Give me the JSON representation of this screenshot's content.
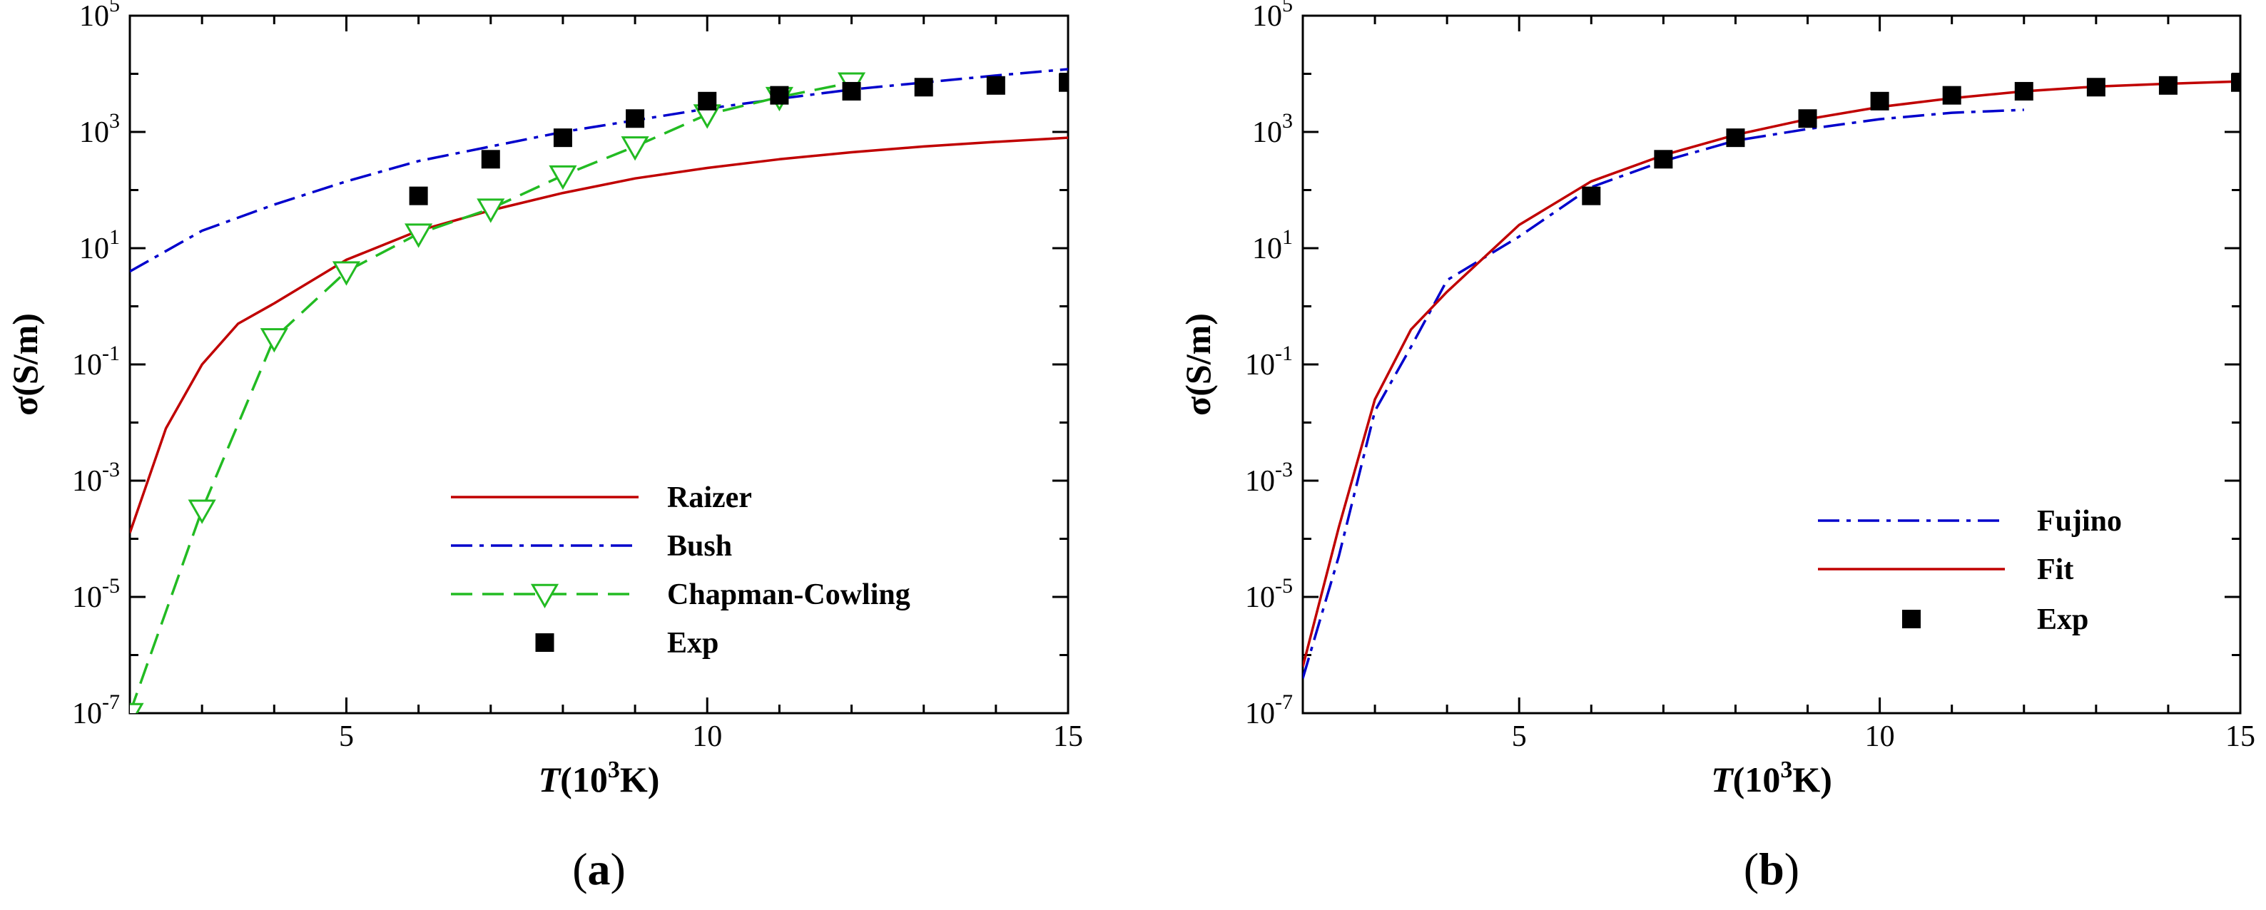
{
  "chart_data": [
    {
      "type": "line",
      "panel": "a",
      "caption": {
        "open": "(",
        "letter": "a",
        "close": ")"
      },
      "xlabel": {
        "var": "T",
        "open": "(10",
        "sup": "3",
        "rest": "K)"
      },
      "ylabel": "σ(S/m)",
      "xlim": [
        2,
        15
      ],
      "ylim_log10": [
        -7,
        5
      ],
      "yscale": "log",
      "x_ticks": [
        5,
        10,
        15
      ],
      "y_ticks": [
        {
          "base": "10",
          "exp": "5",
          "log": 5
        },
        {
          "base": "10",
          "exp": "3",
          "log": 3
        },
        {
          "base": "10",
          "exp": "1",
          "log": 1
        },
        {
          "base": "10",
          "exp": "-1",
          "log": -1
        },
        {
          "base": "10",
          "exp": "-3",
          "log": -3
        },
        {
          "base": "10",
          "exp": "-5",
          "log": -5
        },
        {
          "base": "10",
          "exp": "-7",
          "log": -7
        }
      ],
      "legend_position": "bottom-right",
      "series": [
        {
          "name": "Raizer",
          "color": "#c00000",
          "style": "solid",
          "x": [
            2,
            2.5,
            3,
            3.5,
            4,
            5,
            6,
            7,
            8,
            9,
            10,
            11,
            12,
            13,
            14,
            15
          ],
          "log_y": [
            -3.9,
            -2.1,
            -1.0,
            -0.3,
            0.05,
            0.8,
            1.3,
            1.65,
            1.95,
            2.2,
            2.38,
            2.53,
            2.65,
            2.75,
            2.83,
            2.9
          ]
        },
        {
          "name": "Bush",
          "color": "#0000cc",
          "style": "dashdot",
          "x": [
            2,
            3,
            4,
            5,
            6,
            7,
            8,
            9,
            10,
            11,
            12,
            13,
            14,
            15
          ],
          "log_y": [
            0.6,
            1.3,
            1.75,
            2.15,
            2.5,
            2.75,
            3.0,
            3.2,
            3.4,
            3.57,
            3.73,
            3.85,
            3.97,
            4.08
          ]
        },
        {
          "name": "Chapman-Cowling",
          "color": "#22bb22",
          "style": "dashed",
          "marker": "triangle-down-open",
          "x": [
            2,
            3,
            4,
            5,
            6,
            7,
            8,
            9,
            10,
            11,
            12
          ],
          "log_y": [
            -7.0,
            -3.5,
            -0.55,
            0.6,
            1.25,
            1.68,
            2.25,
            2.75,
            3.3,
            3.6,
            3.85
          ]
        },
        {
          "name": "Exp",
          "color": "#000000",
          "style": "none",
          "marker": "square-filled",
          "x": [
            6,
            7,
            8,
            9,
            10,
            11,
            12,
            13,
            14,
            15
          ],
          "log_y": [
            1.9,
            2.53,
            2.9,
            3.23,
            3.53,
            3.63,
            3.7,
            3.77,
            3.8,
            3.85
          ]
        }
      ]
    },
    {
      "type": "line",
      "panel": "b",
      "caption": {
        "open": "(",
        "letter": "b",
        "close": ")"
      },
      "xlabel": {
        "var": "T",
        "open": "(10",
        "sup": "3",
        "rest": "K)"
      },
      "ylabel": "σ(S/m)",
      "xlim": [
        2,
        15
      ],
      "ylim_log10": [
        -7,
        5
      ],
      "yscale": "log",
      "x_ticks": [
        5,
        10,
        15
      ],
      "y_ticks": [
        {
          "base": "10",
          "exp": "5",
          "log": 5
        },
        {
          "base": "10",
          "exp": "3",
          "log": 3
        },
        {
          "base": "10",
          "exp": "1",
          "log": 1
        },
        {
          "base": "10",
          "exp": "-1",
          "log": -1
        },
        {
          "base": "10",
          "exp": "-3",
          "log": -3
        },
        {
          "base": "10",
          "exp": "-5",
          "log": -5
        },
        {
          "base": "10",
          "exp": "-7",
          "log": -7
        }
      ],
      "legend_position": "bottom-right",
      "series": [
        {
          "name": "Fujino",
          "color": "#0000cc",
          "style": "dashdot",
          "x": [
            2,
            2.5,
            3,
            3.5,
            4,
            5,
            6,
            7,
            8,
            9,
            10,
            11,
            12
          ],
          "log_y": [
            -6.4,
            -4.3,
            -1.8,
            -0.7,
            0.45,
            1.2,
            2.05,
            2.5,
            2.85,
            3.05,
            3.22,
            3.33,
            3.38
          ]
        },
        {
          "name": "Fit",
          "color": "#c00000",
          "style": "solid",
          "x": [
            2,
            2.5,
            3,
            3.5,
            4,
            5,
            6,
            7,
            8,
            9,
            10,
            11,
            12,
            13,
            14,
            15
          ],
          "log_y": [
            -6.2,
            -3.8,
            -1.6,
            -0.4,
            0.25,
            1.4,
            2.15,
            2.6,
            2.95,
            3.22,
            3.43,
            3.58,
            3.7,
            3.78,
            3.83,
            3.87
          ]
        },
        {
          "name": "Exp",
          "color": "#000000",
          "style": "none",
          "marker": "square-filled",
          "x": [
            6,
            7,
            8,
            9,
            10,
            11,
            12,
            13,
            14,
            15
          ],
          "log_y": [
            1.9,
            2.53,
            2.9,
            3.23,
            3.53,
            3.63,
            3.7,
            3.77,
            3.8,
            3.85
          ]
        }
      ]
    }
  ]
}
